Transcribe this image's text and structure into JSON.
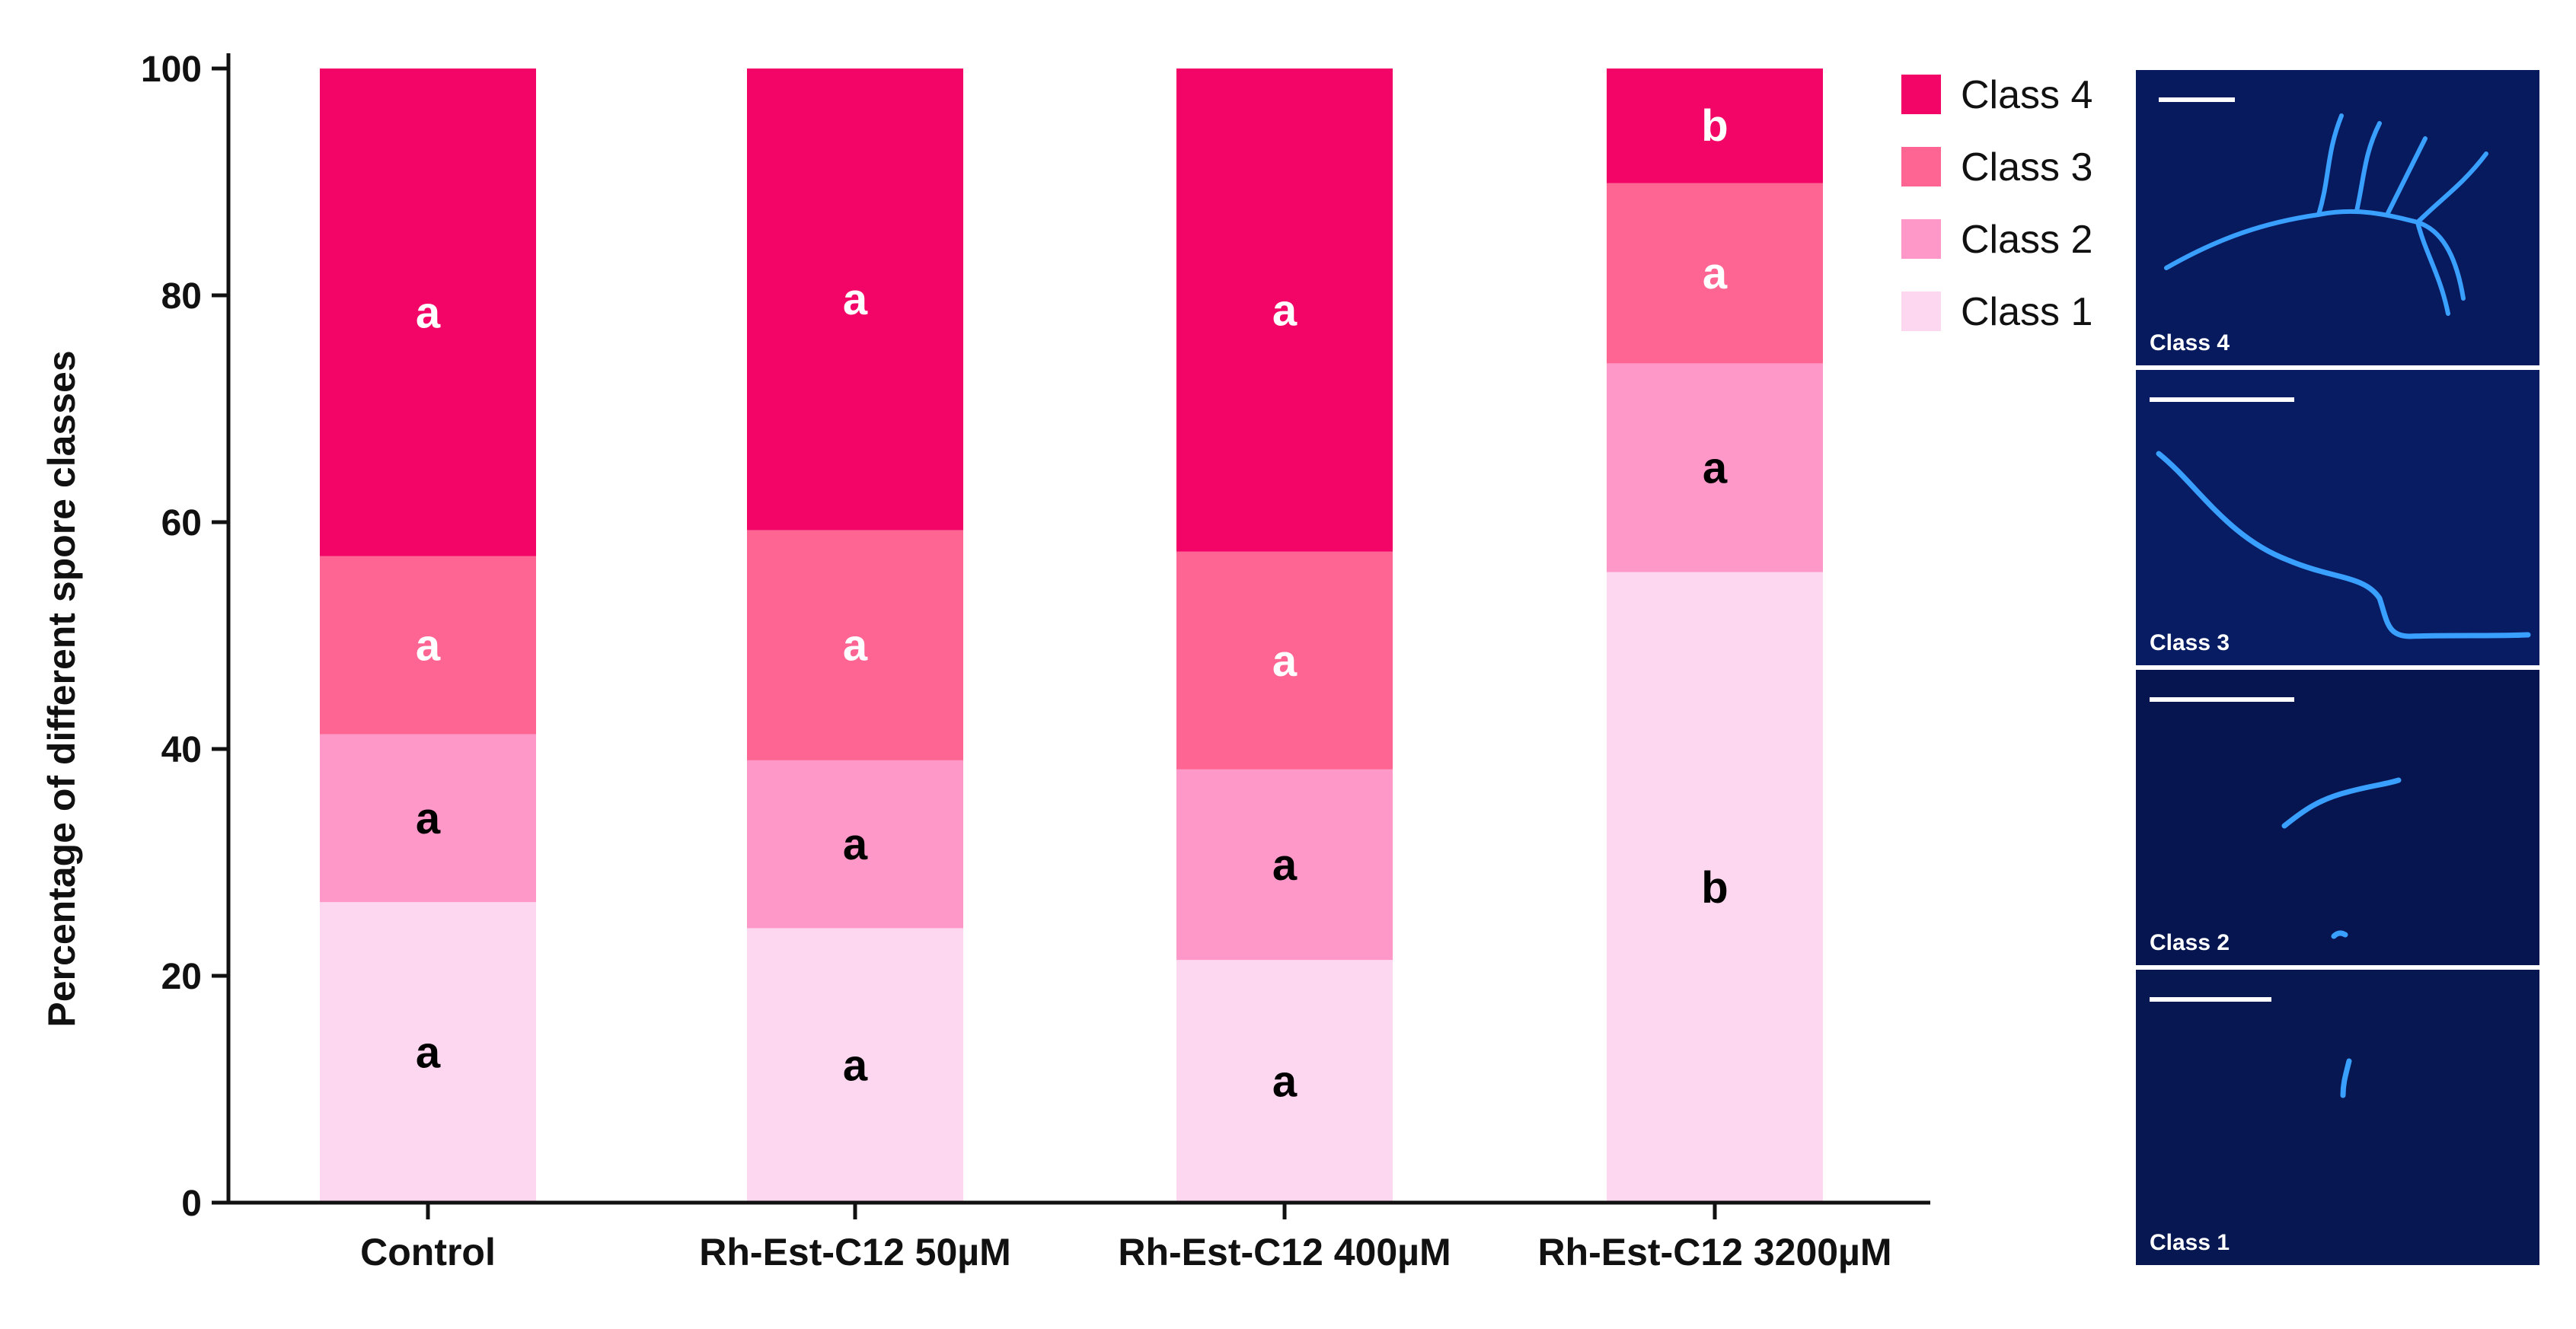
{
  "chart_data": {
    "type": "bar",
    "stacked": true,
    "ylabel": "Percentage of different spore classes",
    "xlabel": "",
    "ylim": [
      0,
      100
    ],
    "yticks": [
      0,
      20,
      40,
      60,
      80,
      100
    ],
    "categories": [
      "Control",
      "Rh-Est-C12 50µM",
      "Rh-Est-C12 400µM",
      "Rh-Est-C12 3200µM"
    ],
    "series": [
      {
        "name": "Class 1",
        "color": "#fdd6ef",
        "values": [
          26.5,
          24.2,
          21.4,
          55.6
        ],
        "letters": [
          "a",
          "a",
          "a",
          "b"
        ],
        "letter_color": "#000000"
      },
      {
        "name": "Class 2",
        "color": "#fd98c9",
        "values": [
          14.8,
          14.8,
          16.8,
          18.4
        ],
        "letters": [
          "a",
          "a",
          "a",
          "a"
        ],
        "letter_color": "#000000"
      },
      {
        "name": "Class 3",
        "color": "#fe6592",
        "values": [
          15.7,
          20.3,
          19.2,
          15.9
        ],
        "letters": [
          "a",
          "a",
          "a",
          "a"
        ],
        "letter_color": "#ffffff"
      },
      {
        "name": "Class 4",
        "color": "#f20566",
        "values": [
          43.0,
          40.7,
          42.6,
          10.1
        ],
        "letters": [
          "a",
          "a",
          "a",
          "b"
        ],
        "letter_color": "#ffffff"
      }
    ],
    "legend_position": "right",
    "legend_order": [
      "Class 4",
      "Class 3",
      "Class 2",
      "Class 1"
    ]
  },
  "micrographs": [
    {
      "label": "Class 4",
      "icon": "branched-hypha"
    },
    {
      "label": "Class 3",
      "icon": "long-hypha"
    },
    {
      "label": "Class 2",
      "icon": "short-germ-tube"
    },
    {
      "label": "Class 1",
      "icon": "spore"
    }
  ]
}
